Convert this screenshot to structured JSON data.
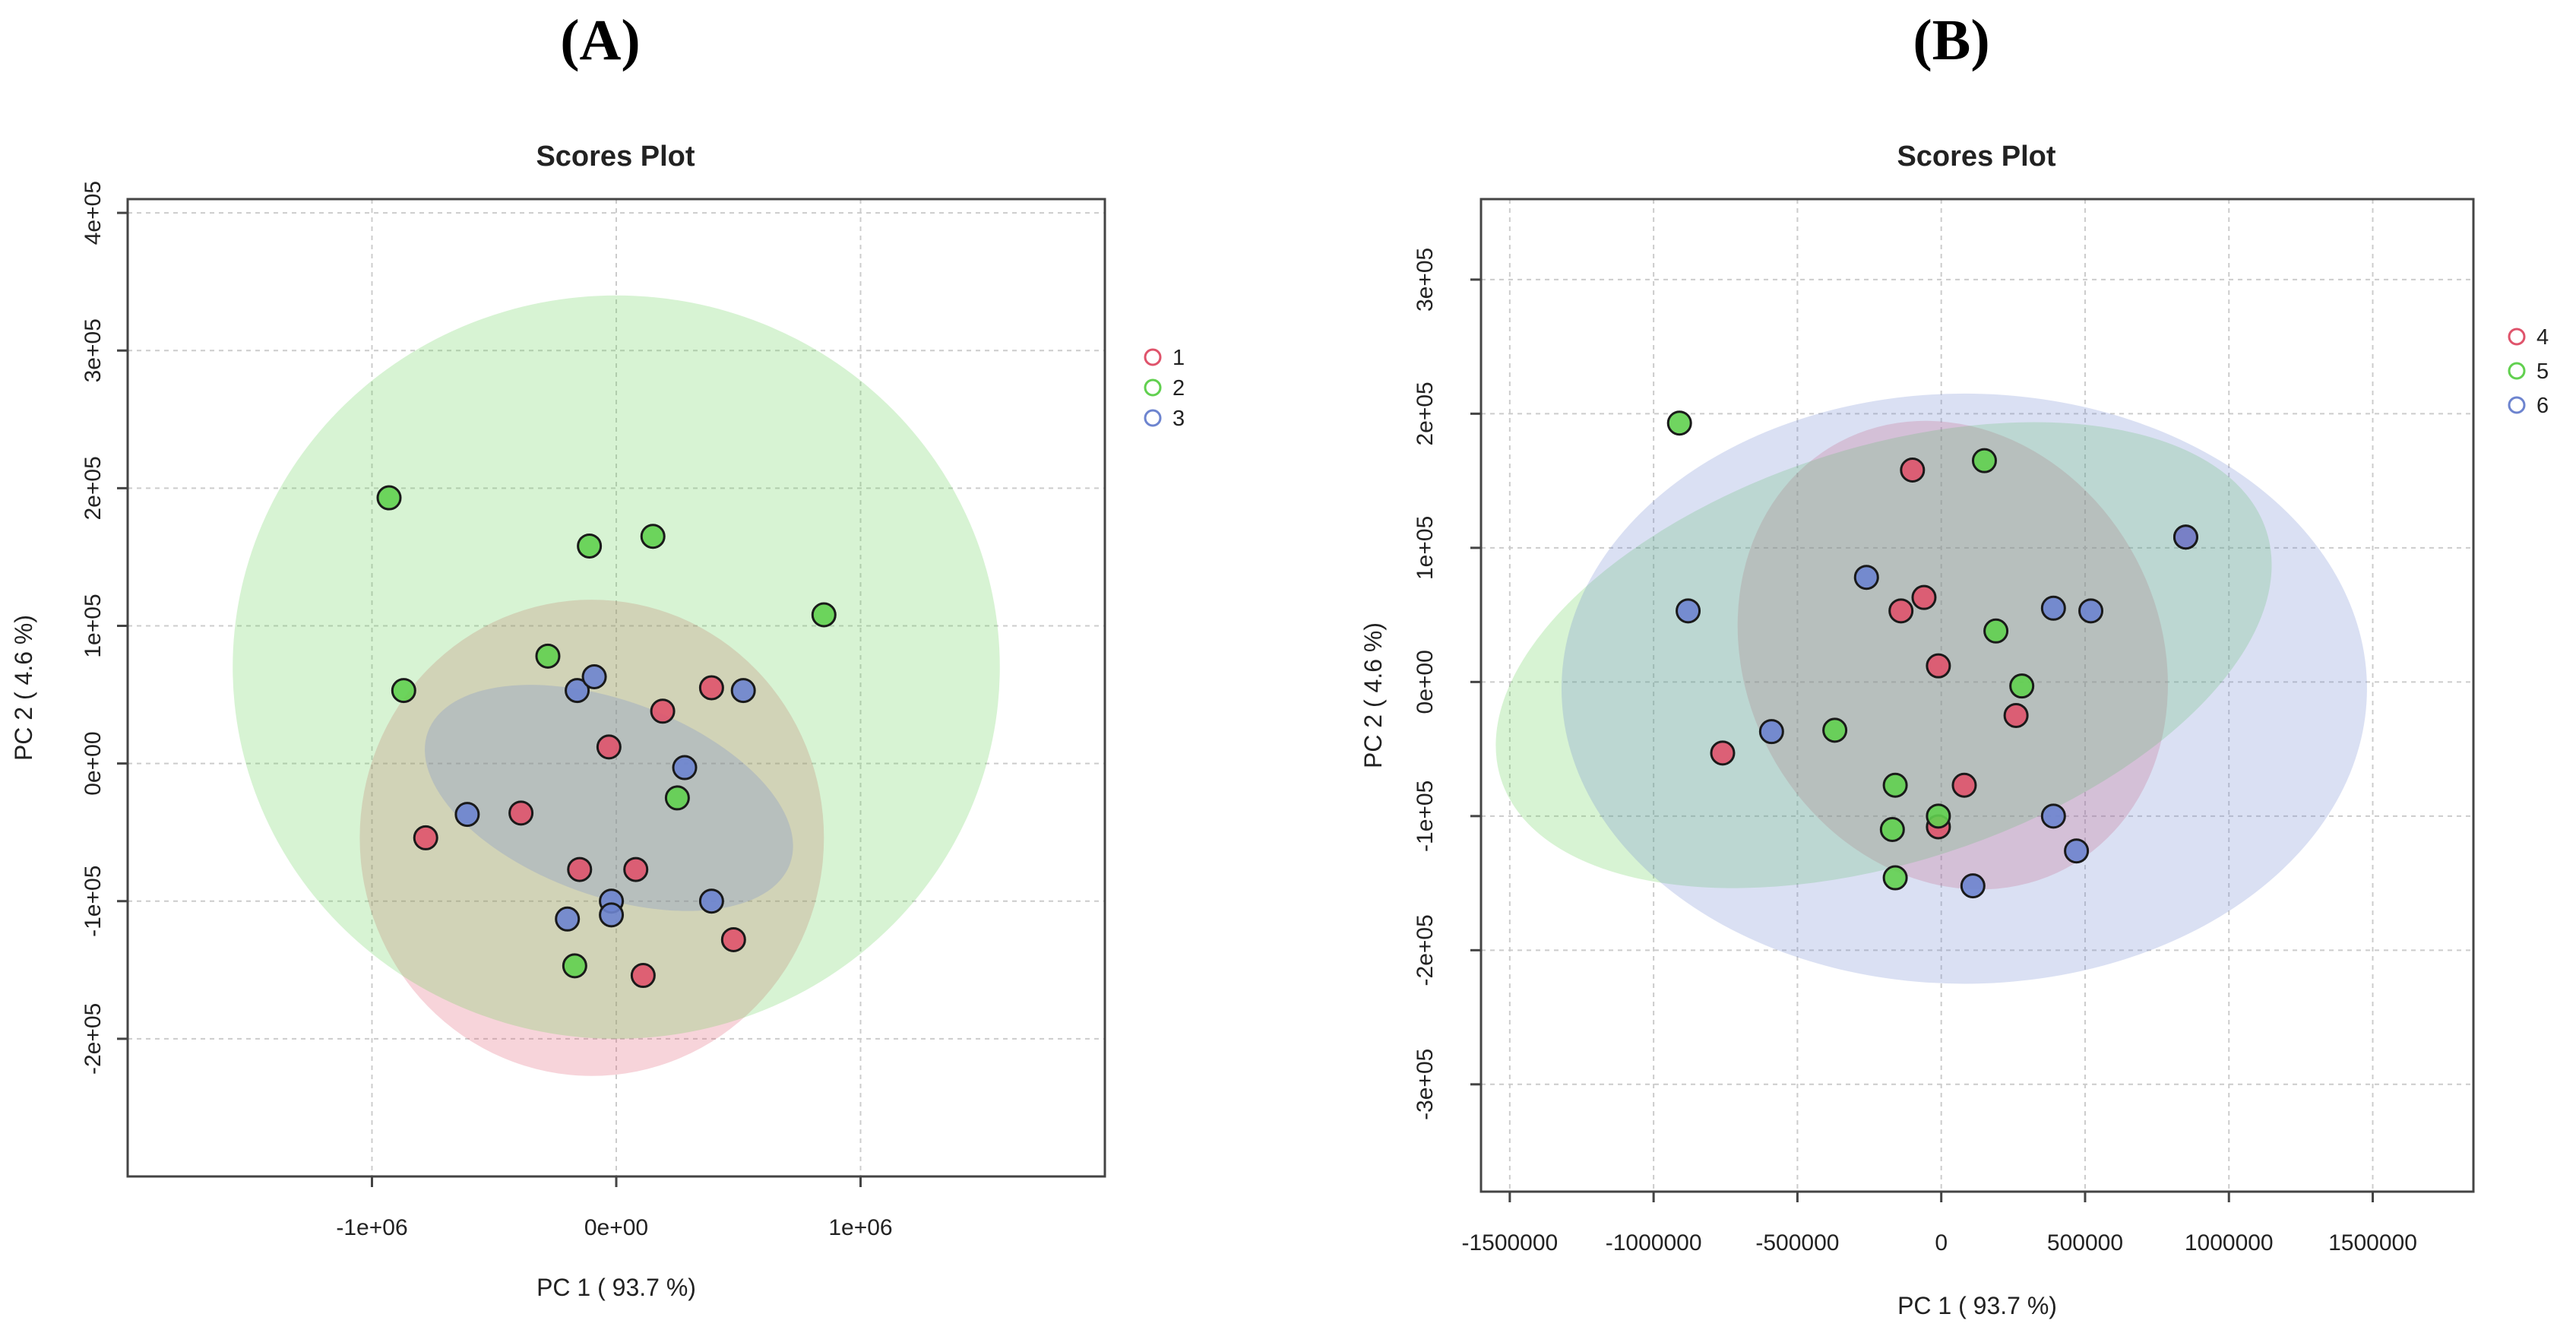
{
  "chart_data": [
    {
      "panel_label": "(A)",
      "type": "scatter",
      "title": "Scores Plot",
      "xlabel": "PC 1 ( 93.7 %)",
      "ylabel": "PC 2 ( 4.6 %)",
      "xlim": [
        -2000000,
        2000000
      ],
      "ylim": [
        -300000,
        410000
      ],
      "x_ticks": [
        -1000000,
        0,
        1000000
      ],
      "x_tick_labels": [
        "-1e+06",
        "0e+00",
        "1e+06"
      ],
      "y_ticks": [
        -200000,
        -100000,
        0,
        100000,
        200000,
        300000,
        400000
      ],
      "y_tick_labels": [
        "-2e+05",
        "-1e+05",
        "0e+00",
        "1e+05",
        "2e+05",
        "3e+05",
        "4e+05"
      ],
      "grid": true,
      "legend_position": "right",
      "series": [
        {
          "name": "1",
          "color": "#df536b",
          "points": [
            [
              -780000,
              -54000
            ],
            [
              -390000,
              -36000
            ],
            [
              -30000,
              12000
            ],
            [
              190000,
              38000
            ],
            [
              390000,
              55000
            ],
            [
              -150000,
              -77000
            ],
            [
              80000,
              -77000
            ],
            [
              110000,
              -154000
            ],
            [
              480000,
              -128000
            ]
          ],
          "ellipse": {
            "cx": -100000,
            "cy": -54000,
            "rx": 950000,
            "ry": 173000,
            "rotation_deg": 0
          }
        },
        {
          "name": "2",
          "color": "#61d04f",
          "points": [
            [
              -930000,
              193000
            ],
            [
              -870000,
              53000
            ],
            [
              -110000,
              158000
            ],
            [
              150000,
              165000
            ],
            [
              -280000,
              78000
            ],
            [
              850000,
              108000
            ],
            [
              250000,
              -25000
            ],
            [
              -170000,
              -147000
            ]
          ],
          "ellipse": {
            "cx": 0,
            "cy": 70000,
            "rx": 1570000,
            "ry": 270000,
            "rotation_deg": 0
          }
        },
        {
          "name": "3",
          "color": "#6d84cf",
          "points": [
            [
              -610000,
              -37000
            ],
            [
              -160000,
              53000
            ],
            [
              -90000,
              63000
            ],
            [
              280000,
              -3000
            ],
            [
              520000,
              53000
            ],
            [
              -20000,
              -100000
            ],
            [
              -20000,
              -110000
            ],
            [
              -200000,
              -113000
            ],
            [
              390000,
              -100000
            ]
          ],
          "ellipse": {
            "cx": -30000,
            "cy": -25000,
            "rx": 400000,
            "ry": 140000,
            "rotation_deg": 70
          }
        }
      ]
    },
    {
      "panel_label": "(B)",
      "type": "scatter",
      "title": "Scores Plot",
      "xlabel": "PC 1 ( 93.7 %)",
      "ylabel": "PC 2 ( 4.6 %)",
      "xlim": [
        -1600000,
        1850000
      ],
      "ylim": [
        -380000,
        360000
      ],
      "x_ticks": [
        -1500000,
        -1000000,
        -500000,
        0,
        500000,
        1000000,
        1500000
      ],
      "x_tick_labels": [
        "-1500000",
        "-1000000",
        "-500000",
        "0",
        "500000",
        "1000000",
        "1500000"
      ],
      "y_ticks": [
        -300000,
        -200000,
        -100000,
        0,
        100000,
        200000,
        300000
      ],
      "y_tick_labels": [
        "-3e+05",
        "-2e+05",
        "-1e+05",
        "0e+00",
        "1e+05",
        "2e+05",
        "3e+05"
      ],
      "grid": true,
      "legend_position": "right",
      "series": [
        {
          "name": "4",
          "color": "#df536b",
          "points": [
            [
              -100000,
              158000
            ],
            [
              -60000,
              63000
            ],
            [
              -140000,
              53000
            ],
            [
              -10000,
              12000
            ],
            [
              260000,
              -25000
            ],
            [
              -760000,
              -53000
            ],
            [
              80000,
              -77000
            ],
            [
              -10000,
              -108000
            ],
            [
              850000,
              108000
            ]
          ],
          "ellipse": {
            "cx": 40000,
            "cy": 20000,
            "rx": 720000,
            "ry": 180000,
            "rotation_deg": 28
          }
        },
        {
          "name": "5",
          "color": "#61d04f",
          "points": [
            [
              -910000,
              193000
            ],
            [
              150000,
              165000
            ],
            [
              190000,
              38000
            ],
            [
              280000,
              -3000
            ],
            [
              -370000,
              -36000
            ],
            [
              -160000,
              -77000
            ],
            [
              -170000,
              -110000
            ],
            [
              -10000,
              -100000
            ],
            [
              -160000,
              -146000
            ]
          ],
          "ellipse": {
            "cx": -200000,
            "cy": 20000,
            "rx": 720000,
            "ry": 300000,
            "rotation_deg": 108
          }
        },
        {
          "name": "6",
          "color": "#6d84cf",
          "points": [
            [
              -880000,
              53000
            ],
            [
              -590000,
              -37000
            ],
            [
              -260000,
              78000
            ],
            [
              390000,
              55000
            ],
            [
              520000,
              53000
            ],
            [
              390000,
              -100000
            ],
            [
              470000,
              -126000
            ],
            [
              110000,
              -152000
            ],
            [
              850000,
              108000
            ]
          ],
          "ellipse": {
            "cx": 80000,
            "cy": -5000,
            "rx": 1400000,
            "ry": 220000,
            "rotation_deg": 0
          }
        }
      ]
    }
  ]
}
